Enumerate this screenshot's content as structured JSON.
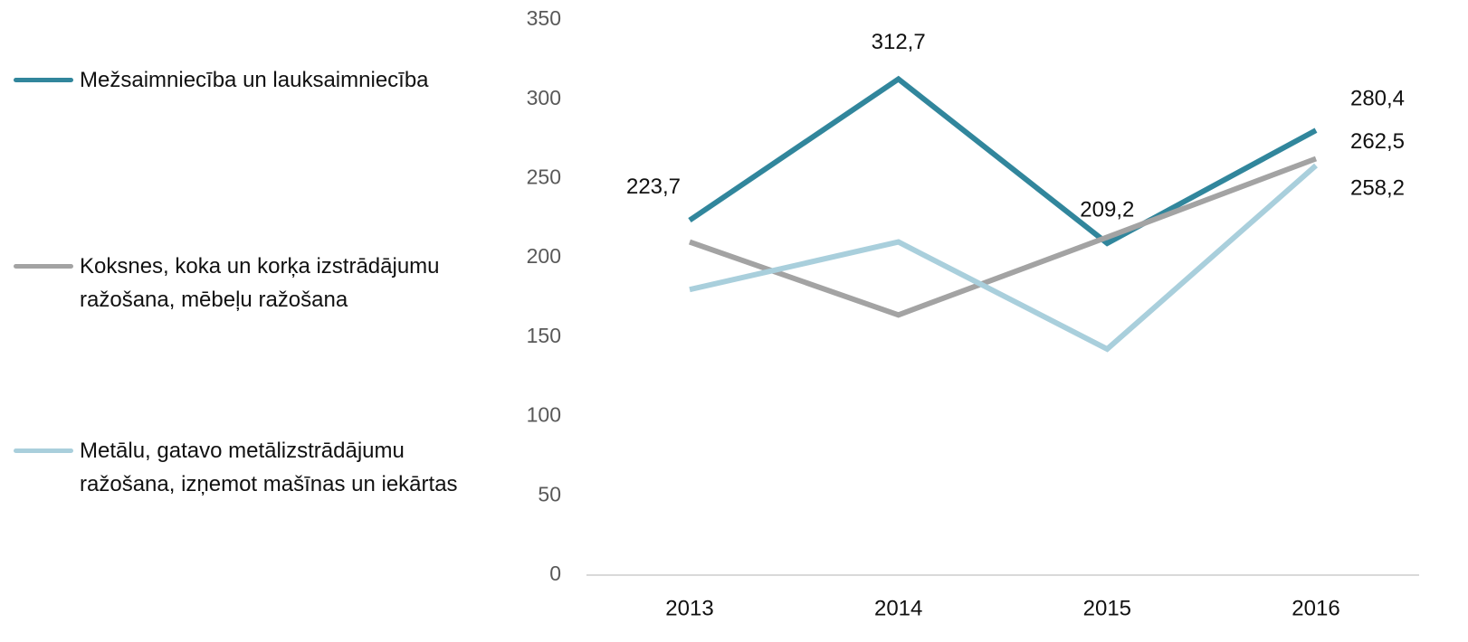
{
  "chart_data": {
    "type": "line",
    "categories": [
      "2013",
      "2014",
      "2015",
      "2016"
    ],
    "series": [
      {
        "name": "Mežsaimniecība un lauksaimniecība",
        "color": "#31869c",
        "values": [
          223.7,
          312.7,
          209.2,
          280.4
        ],
        "value_labels": [
          "223,7",
          "312,7",
          "209,2",
          "280,4"
        ]
      },
      {
        "name": "Koksnes, koka un korķa izstrādājumu ražošana, mēbeļu ražošana",
        "color": "#a3a3a3",
        "values": [
          210,
          164,
          213,
          262.5
        ],
        "value_labels": [
          null,
          null,
          null,
          "262,5"
        ]
      },
      {
        "name": "Metālu, gatavo metālizstrādājumu ražošana, izņemot mašīnas un iekārtas",
        "color": "#a9cfdc",
        "values": [
          180,
          210,
          142.5,
          258.2
        ],
        "value_labels": [
          null,
          null,
          null,
          "258,2"
        ]
      }
    ],
    "ylim": [
      0,
      350
    ],
    "yticks": [
      0,
      50,
      100,
      150,
      200,
      250,
      300,
      350
    ],
    "grid": false,
    "legend": "left"
  }
}
